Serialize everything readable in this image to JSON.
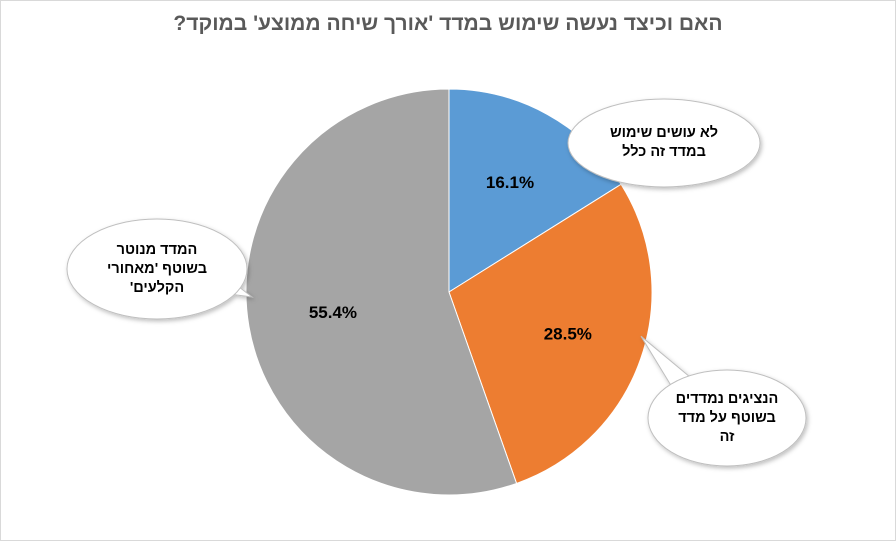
{
  "title": "האם וכיצד נעשה שימוש במדד 'אורך שיחה ממוצע' במוקד?",
  "chart_data": {
    "type": "pie",
    "title": "האם וכיצד נעשה שימוש במדד 'אורך שיחה ממוצע' במוקד?",
    "start_angle_deg": 0,
    "direction": "clockwise",
    "slices": [
      {
        "label_lines": [
          "לא עושים  שימוש",
          "במדד זה כלל"
        ],
        "value": 16.1,
        "data_label": "16.1%",
        "color": "#5b9bd5"
      },
      {
        "label_lines": [
          "הנציגים נמדדים",
          "בשוטף  על  מדד",
          "זה"
        ],
        "value": 28.5,
        "data_label": "28.5%",
        "color": "#ed7d31"
      },
      {
        "label_lines": [
          "המדד מנוטר",
          "בשוטף 'מאחורי",
          "הקלעים'"
        ],
        "value": 55.4,
        "data_label": "55.4%",
        "color": "#a5a5a5"
      }
    ]
  }
}
